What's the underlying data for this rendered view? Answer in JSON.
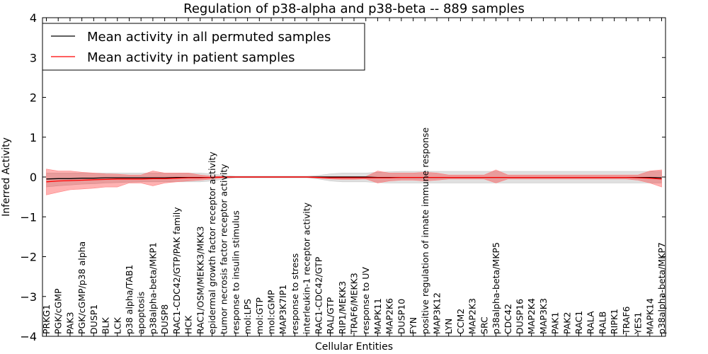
{
  "chart_data": {
    "type": "line",
    "title": "Regulation of p38-alpha and p38-beta -- 889 samples",
    "xlabel": "Cellular Entities",
    "ylabel": "Inferred Activity",
    "ylim": [
      -4,
      4
    ],
    "yticks": [
      -4,
      -3,
      -2,
      -1,
      0,
      1,
      2,
      3,
      4
    ],
    "ytick_labels": [
      "−4",
      "−3",
      "−2",
      "−1",
      "0",
      "1",
      "2",
      "3",
      "4"
    ],
    "legend_position": "top-left",
    "categories": [
      "PRKG1",
      "PGK/cGMP",
      "PAK3",
      "PGK/cGMP/p38 alpha",
      "DUSP1",
      "BLK",
      "LCK",
      "p38 alpha/TAB1",
      "apoptosis",
      "p38alpha-beta/MKP1",
      "DUSP8",
      "RAC1-CDC42/GTP/PAK family",
      "HCK",
      "RAC1/OSM/MEKK3/MKK3",
      "epidermal growth factor receptor activity",
      "tumor necrosis factor receptor activity",
      "response to insulin stimulus",
      "mol:LPS",
      "mol:GTP",
      "mol:cGMP",
      "MAP3K7IP1",
      "response to stress",
      "interleukin-1 receptor activity",
      "RAC1-CDC42/GTP",
      "RAL/GTP",
      "RIP1/MEKK3",
      "TRAF6/MEKK3",
      "response to UV",
      "MAPK11",
      "MAP2K6",
      "DUSP10",
      "FYN",
      "positive regulation of innate immune response",
      "MAP3K12",
      "LYN",
      "CCM2",
      "MAP2K3",
      "SRC",
      "p38alpha-beta/MKP5",
      "CDC42",
      "DUSP16",
      "MAP2K4",
      "MAP3K3",
      "PAK1",
      "PAK2",
      "RAC1",
      "RALA",
      "RALB",
      "RIPK1",
      "TRAF6",
      "YES1",
      "MAPK14",
      "p38alpha-beta/MKP7"
    ],
    "series": [
      {
        "name": "Mean activity in all permuted samples",
        "color": "#000000",
        "values": [
          -0.05,
          -0.04,
          -0.04,
          -0.03,
          -0.03,
          -0.02,
          -0.02,
          -0.02,
          -0.02,
          -0.02,
          -0.02,
          -0.01,
          -0.01,
          -0.01,
          -0.01,
          0.0,
          0.0,
          0.0,
          0.0,
          0.0,
          0.0,
          0.0,
          0.0,
          0.0,
          0.0,
          0.0,
          0.0,
          0.0,
          -0.01,
          -0.01,
          -0.01,
          -0.01,
          -0.01,
          -0.01,
          -0.01,
          -0.01,
          -0.01,
          -0.01,
          -0.01,
          -0.01,
          -0.01,
          -0.01,
          -0.01,
          -0.01,
          -0.01,
          -0.01,
          -0.01,
          -0.01,
          -0.01,
          -0.01,
          -0.01,
          -0.01,
          -0.02
        ],
        "band_lower": [
          -0.25,
          -0.22,
          -0.2,
          -0.18,
          -0.17,
          -0.15,
          -0.14,
          -0.13,
          -0.12,
          -0.12,
          -0.12,
          -0.12,
          -0.12,
          -0.12,
          -0.1,
          -0.05,
          -0.02,
          -0.02,
          -0.02,
          -0.02,
          -0.02,
          -0.02,
          -0.02,
          -0.05,
          -0.1,
          -0.12,
          -0.12,
          -0.12,
          -0.14,
          -0.15,
          -0.15,
          -0.15,
          -0.15,
          -0.15,
          -0.15,
          -0.15,
          -0.15,
          -0.15,
          -0.15,
          -0.15,
          -0.15,
          -0.15,
          -0.15,
          -0.15,
          -0.15,
          -0.15,
          -0.15,
          -0.15,
          -0.15,
          -0.15,
          -0.15,
          -0.15,
          -0.15
        ],
        "band_upper": [
          0.1,
          0.1,
          0.1,
          0.1,
          0.1,
          0.1,
          0.1,
          0.1,
          0.1,
          0.1,
          0.1,
          0.1,
          0.1,
          0.1,
          0.08,
          0.04,
          0.02,
          0.02,
          0.02,
          0.02,
          0.02,
          0.02,
          0.02,
          0.04,
          0.08,
          0.1,
          0.1,
          0.1,
          0.12,
          0.13,
          0.14,
          0.14,
          0.14,
          0.14,
          0.14,
          0.14,
          0.14,
          0.14,
          0.14,
          0.14,
          0.14,
          0.14,
          0.14,
          0.14,
          0.14,
          0.14,
          0.14,
          0.14,
          0.14,
          0.14,
          0.14,
          0.14,
          0.14
        ]
      },
      {
        "name": "Mean activity in patient samples",
        "color": "#ff0000",
        "values": [
          -0.12,
          -0.1,
          -0.09,
          -0.08,
          -0.07,
          -0.06,
          -0.05,
          -0.05,
          -0.05,
          -0.04,
          -0.04,
          -0.03,
          -0.02,
          -0.02,
          -0.01,
          0.0,
          0.0,
          0.0,
          0.0,
          0.0,
          0.0,
          0.0,
          0.0,
          -0.01,
          -0.02,
          -0.02,
          -0.02,
          -0.02,
          -0.02,
          -0.02,
          -0.01,
          -0.01,
          -0.01,
          -0.01,
          -0.01,
          -0.01,
          -0.01,
          -0.01,
          -0.01,
          -0.01,
          -0.01,
          -0.01,
          -0.01,
          -0.01,
          -0.01,
          -0.01,
          -0.01,
          -0.01,
          -0.01,
          -0.01,
          -0.02,
          -0.03,
          -0.05
        ],
        "band_lower": [
          -0.45,
          -0.38,
          -0.32,
          -0.3,
          -0.28,
          -0.25,
          -0.25,
          -0.15,
          -0.15,
          -0.22,
          -0.15,
          -0.12,
          -0.1,
          -0.08,
          -0.05,
          -0.02,
          -0.01,
          -0.01,
          -0.01,
          -0.01,
          -0.01,
          -0.01,
          -0.01,
          -0.03,
          -0.05,
          -0.06,
          -0.06,
          -0.05,
          -0.15,
          -0.1,
          -0.08,
          -0.08,
          -0.1,
          -0.08,
          -0.05,
          -0.05,
          -0.05,
          -0.05,
          -0.15,
          -0.05,
          -0.05,
          -0.05,
          -0.05,
          -0.05,
          -0.05,
          -0.05,
          -0.05,
          -0.05,
          -0.05,
          -0.05,
          -0.08,
          -0.15,
          -0.25
        ],
        "band_upper": [
          0.2,
          0.15,
          0.15,
          0.12,
          0.1,
          0.08,
          0.07,
          0.05,
          0.05,
          0.15,
          0.1,
          0.1,
          0.1,
          0.05,
          0.02,
          0.01,
          0.01,
          0.01,
          0.01,
          0.01,
          0.01,
          0.01,
          0.01,
          0.01,
          0.01,
          0.01,
          0.01,
          0.01,
          0.15,
          0.1,
          0.1,
          0.1,
          0.12,
          0.1,
          0.05,
          0.05,
          0.05,
          0.05,
          0.18,
          0.05,
          0.05,
          0.05,
          0.05,
          0.05,
          0.05,
          0.05,
          0.05,
          0.05,
          0.05,
          0.05,
          0.05,
          0.15,
          0.18
        ]
      }
    ]
  }
}
